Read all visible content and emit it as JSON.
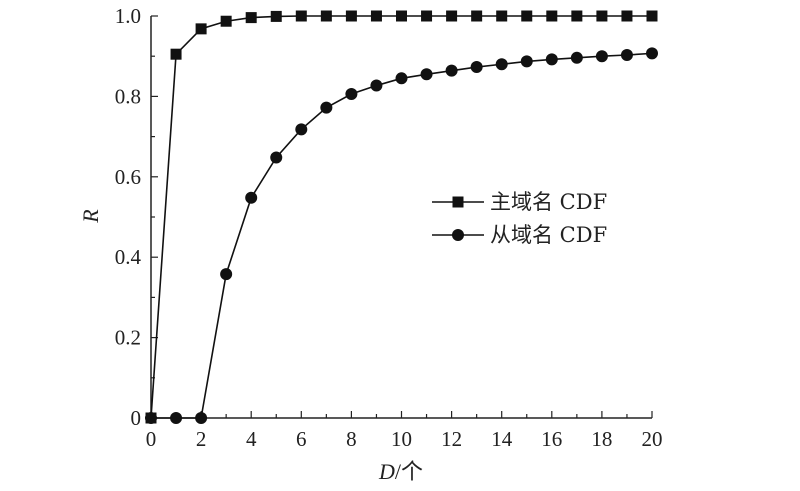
{
  "chart_data": {
    "type": "line",
    "title": "",
    "xlabel": {
      "var": "D",
      "unit": "/个"
    },
    "ylabel": "R",
    "xlim": [
      0,
      20
    ],
    "ylim": [
      0,
      1.0
    ],
    "x_ticks": [
      0,
      2,
      4,
      6,
      8,
      10,
      12,
      14,
      16,
      18,
      20
    ],
    "x_tick_labels": [
      "0",
      "2",
      "4",
      "6",
      "8",
      "10",
      "12",
      "14",
      "16",
      "18",
      "20"
    ],
    "y_ticks": [
      0,
      0.2,
      0.4,
      0.6,
      0.8,
      1.0
    ],
    "y_tick_labels": [
      "0",
      "0.2",
      "0.4",
      "0.6",
      "0.8",
      "1.0"
    ],
    "grid": false,
    "legend_position": "center-right",
    "x": [
      0,
      1,
      2,
      3,
      4,
      5,
      6,
      7,
      8,
      9,
      10,
      11,
      12,
      13,
      14,
      15,
      16,
      17,
      18,
      19,
      20
    ],
    "series": [
      {
        "name": "主域名 CDF",
        "marker": "square",
        "color": "#111111",
        "values": [
          0,
          0.905,
          0.968,
          0.987,
          0.996,
          0.999,
          1.0,
          1.0,
          1.0,
          1.0,
          1.0,
          1.0,
          1.0,
          1.0,
          1.0,
          1.0,
          1.0,
          1.0,
          1.0,
          1.0,
          1.0
        ]
      },
      {
        "name": "从域名 CDF",
        "marker": "circle",
        "color": "#111111",
        "values": [
          0,
          0,
          0,
          0.358,
          0.548,
          0.648,
          0.718,
          0.772,
          0.806,
          0.827,
          0.845,
          0.855,
          0.864,
          0.873,
          0.88,
          0.887,
          0.892,
          0.896,
          0.9,
          0.903,
          0.907
        ]
      }
    ]
  }
}
